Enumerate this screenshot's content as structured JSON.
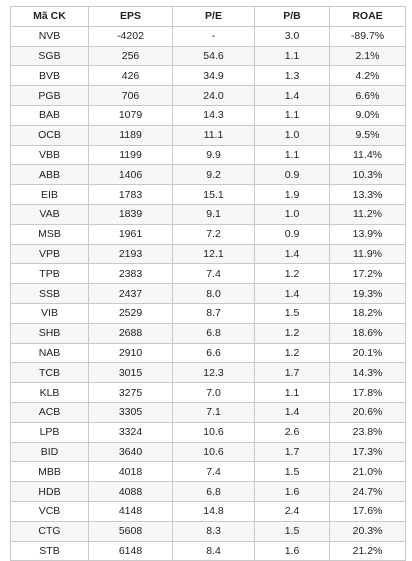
{
  "table": {
    "headers": [
      "Mã CK",
      "EPS",
      "P/E",
      "P/B",
      "ROAE"
    ],
    "rows": [
      [
        "NVB",
        "-4202",
        "-",
        "3.0",
        "-89.7%"
      ],
      [
        "SGB",
        "256",
        "54.6",
        "1.1",
        "2.1%"
      ],
      [
        "BVB",
        "426",
        "34.9",
        "1.3",
        "4.2%"
      ],
      [
        "PGB",
        "706",
        "24.0",
        "1.4",
        "6.6%"
      ],
      [
        "BAB",
        "1079",
        "14.3",
        "1.1",
        "9.0%"
      ],
      [
        "OCB",
        "1189",
        "11.1",
        "1.0",
        "9.5%"
      ],
      [
        "VBB",
        "1199",
        "9.9",
        "1.1",
        "11.4%"
      ],
      [
        "ABB",
        "1406",
        "9.2",
        "0.9",
        "10.3%"
      ],
      [
        "EIB",
        "1783",
        "15.1",
        "1.9",
        "13.3%"
      ],
      [
        "VAB",
        "1839",
        "9.1",
        "1.0",
        "11.2%"
      ],
      [
        "MSB",
        "1961",
        "7.2",
        "0.9",
        "13.9%"
      ],
      [
        "VPB",
        "2193",
        "12.1",
        "1.4",
        "11.9%"
      ],
      [
        "TPB",
        "2383",
        "7.4",
        "1.2",
        "17.2%"
      ],
      [
        "SSB",
        "2437",
        "8.0",
        "1.4",
        "19.3%"
      ],
      [
        "VIB",
        "2529",
        "8.7",
        "1.5",
        "18.2%"
      ],
      [
        "SHB",
        "2688",
        "6.8",
        "1.2",
        "18.6%"
      ],
      [
        "NAB",
        "2910",
        "6.6",
        "1.2",
        "20.1%"
      ],
      [
        "TCB",
        "3015",
        "12.3",
        "1.7",
        "14.3%"
      ],
      [
        "KLB",
        "3275",
        "7.0",
        "1.1",
        "17.8%"
      ],
      [
        "ACB",
        "3305",
        "7.1",
        "1.4",
        "20.6%"
      ],
      [
        "LPB",
        "3324",
        "10.6",
        "2.6",
        "23.8%"
      ],
      [
        "BID",
        "3640",
        "10.6",
        "1.7",
        "17.3%"
      ],
      [
        "MBB",
        "4018",
        "7.4",
        "1.5",
        "21.0%"
      ],
      [
        "HDB",
        "4088",
        "6.8",
        "1.6",
        "24.7%"
      ],
      [
        "VCB",
        "4148",
        "14.8",
        "2.4",
        "17.6%"
      ],
      [
        "CTG",
        "5608",
        "8.3",
        "1.5",
        "20.3%"
      ],
      [
        "STB",
        "6148",
        "8.4",
        "1.6",
        "21.2%"
      ]
    ]
  }
}
